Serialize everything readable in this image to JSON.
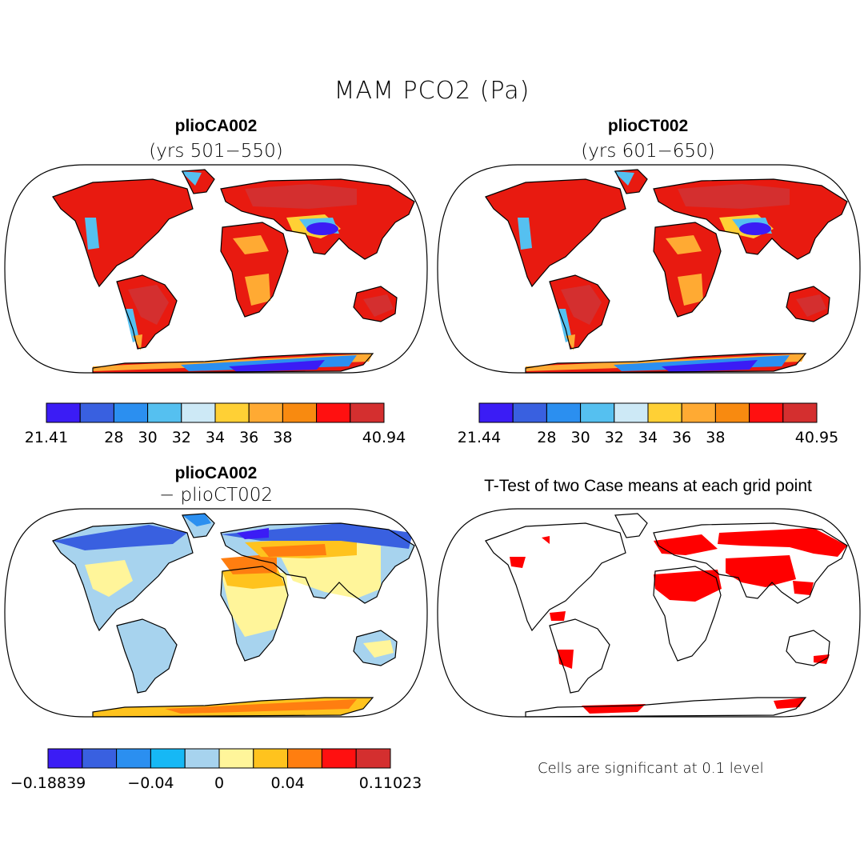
{
  "title": "MAM PCO2 (Pa)",
  "panels": [
    {
      "case": "plioCA002",
      "subtitle": "(yrs 501−550)"
    },
    {
      "case": "plioCT002",
      "subtitle": "(yrs 601−650)"
    },
    {
      "case": "plioCA002",
      "subtitle": "− plioCT002"
    },
    {
      "case": "T-Test of two Case means at each grid point",
      "subtitle": ""
    }
  ],
  "note": "Cells are significant at 0.1 level",
  "colorbars": [
    {
      "colors": [
        "#3b1cf5",
        "#3960e0",
        "#2b8ff0",
        "#55c0f0",
        "#cde9f6",
        "#ffd035",
        "#ffaa33",
        "#f88a10",
        "#ff1010",
        "#d42f2f"
      ],
      "ticks": [
        {
          "label": "21.41",
          "pos": 0
        },
        {
          "label": "28",
          "pos": 2
        },
        {
          "label": "30",
          "pos": 3
        },
        {
          "label": "32",
          "pos": 4
        },
        {
          "label": "34",
          "pos": 5
        },
        {
          "label": "36",
          "pos": 6
        },
        {
          "label": "38",
          "pos": 7
        },
        {
          "label": "40.94",
          "pos": 10
        }
      ]
    },
    {
      "colors": [
        "#3b1cf5",
        "#3960e0",
        "#2b8ff0",
        "#55c0f0",
        "#cde9f6",
        "#ffd035",
        "#ffaa33",
        "#f88a10",
        "#ff1010",
        "#d42f2f"
      ],
      "ticks": [
        {
          "label": "21.44",
          "pos": 0
        },
        {
          "label": "28",
          "pos": 2
        },
        {
          "label": "30",
          "pos": 3
        },
        {
          "label": "32",
          "pos": 4
        },
        {
          "label": "34",
          "pos": 5
        },
        {
          "label": "36",
          "pos": 6
        },
        {
          "label": "38",
          "pos": 7
        },
        {
          "label": "40.95",
          "pos": 10
        }
      ]
    },
    {
      "colors": [
        "#3b1cf5",
        "#3960e0",
        "#2b8ff0",
        "#16b8f5",
        "#a7d3ee",
        "#fff59a",
        "#ffc31e",
        "#ff7e10",
        "#ff1010",
        "#d42f2f"
      ],
      "ticks": [
        {
          "label": "−0.18839",
          "pos": 0
        },
        {
          "label": "−0.04",
          "pos": 3
        },
        {
          "label": "0",
          "pos": 5
        },
        {
          "label": "0.04",
          "pos": 7
        },
        {
          "label": "0.11023",
          "pos": 10
        }
      ]
    }
  ]
}
